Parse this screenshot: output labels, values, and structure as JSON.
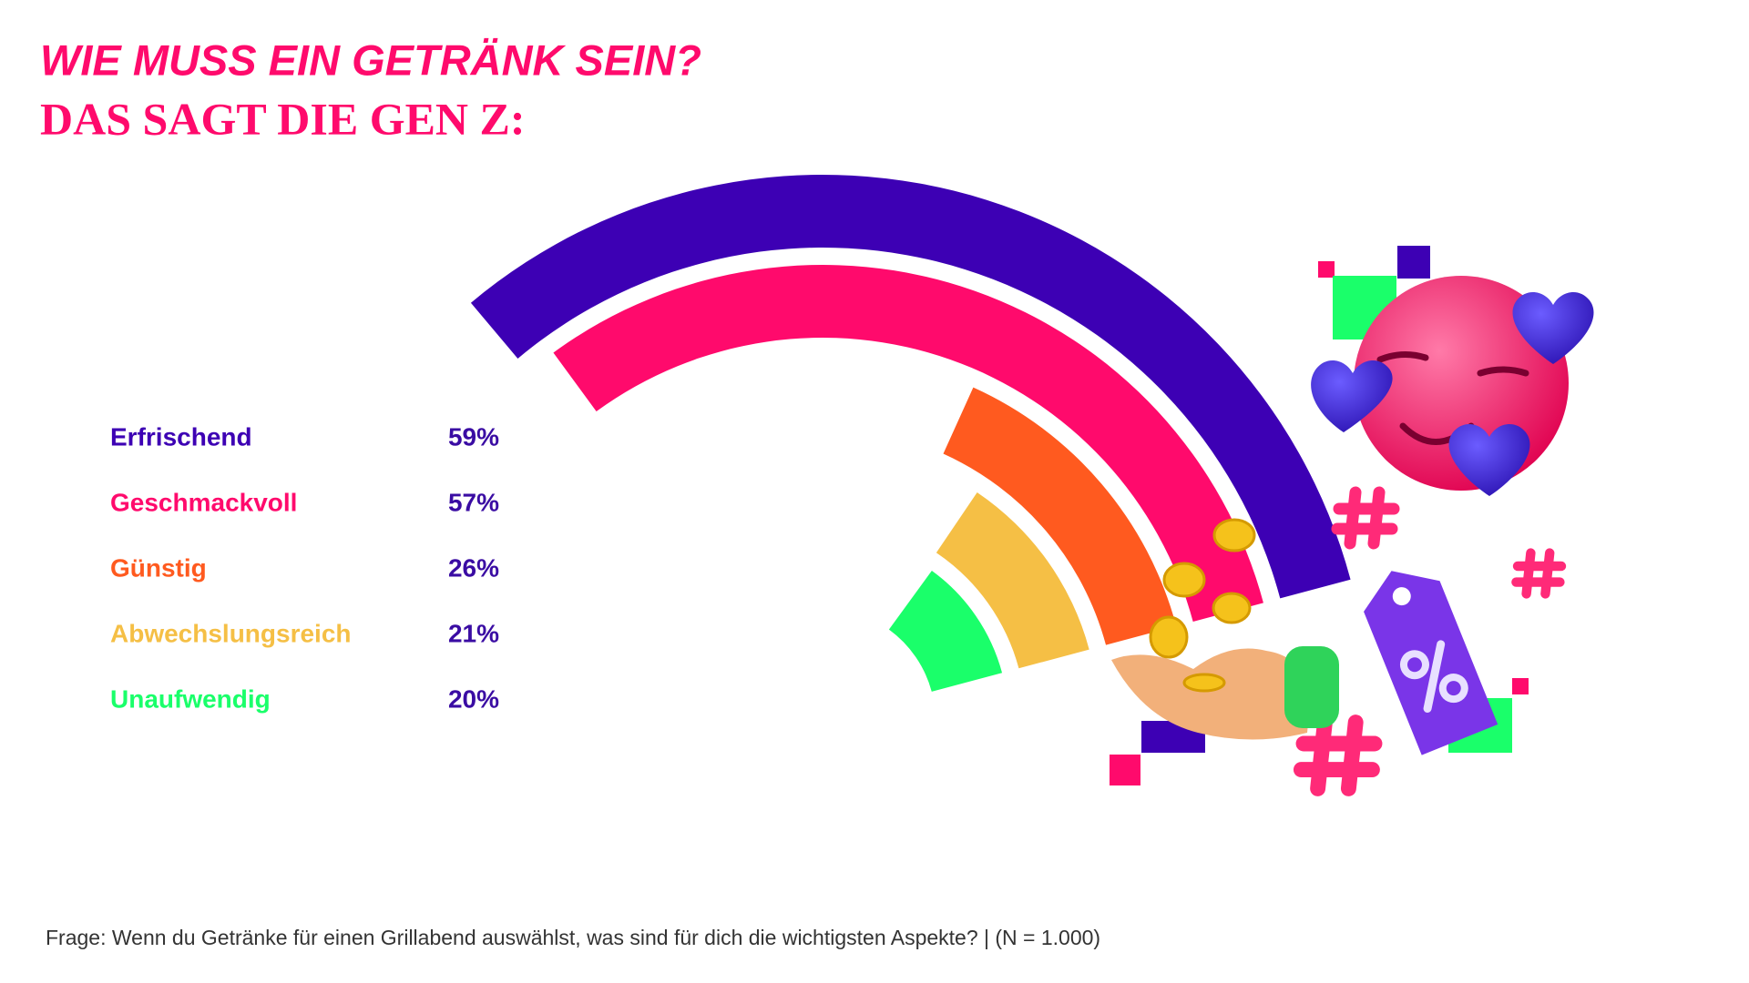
{
  "chart_data": {
    "type": "radial_bar",
    "title": "WIE MUSS EIN GETRÄNK SEIN?",
    "subtitle": "DAS SAGT DIE GEN Z:",
    "categories": [
      "Erfrischend",
      "Geschmackvoll",
      "Günstig",
      "Abwechslungsreich",
      "Unaufwendig"
    ],
    "values": [
      59,
      57,
      26,
      21,
      20
    ],
    "value_labels": [
      "59%",
      "57%",
      "26%",
      "21%",
      "20%"
    ],
    "colors": [
      "#3d00b4",
      "#ff0a6c",
      "#ff5a1f",
      "#f5bf45",
      "#1aff6a"
    ],
    "value_label_color": "#3a0ca3",
    "note": "Frage: Wenn du Getränke für einen Grillabend auswählst, was sind für dich die wichtigsten Aspekte? | (N = 1.000)"
  }
}
